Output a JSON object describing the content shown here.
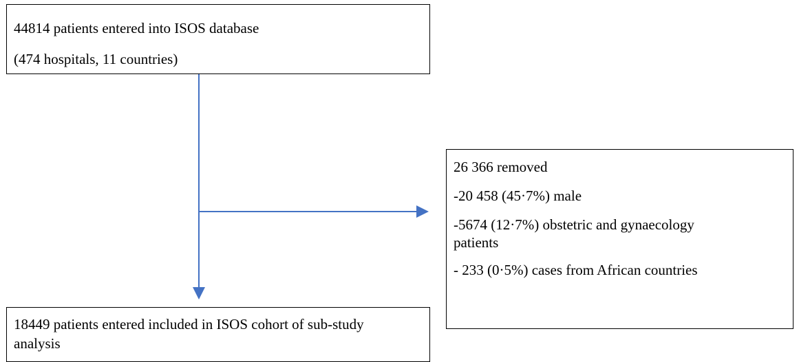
{
  "nodes": [
    {
      "lines": [
        "44814 patients entered into ISOS database",
        "(474 hospitals, 11 countries)"
      ]
    },
    {
      "lines": [
        "26 366 removed",
        "-20 458 (45·7%) male",
        "-5674 (12·7%) obstetric and gynaecology patients",
        "- 233 (0·5%) cases from African countries"
      ]
    },
    {
      "lines": [
        "18449 patients entered included in ISOS cohort of sub-study analysis"
      ]
    }
  ]
}
